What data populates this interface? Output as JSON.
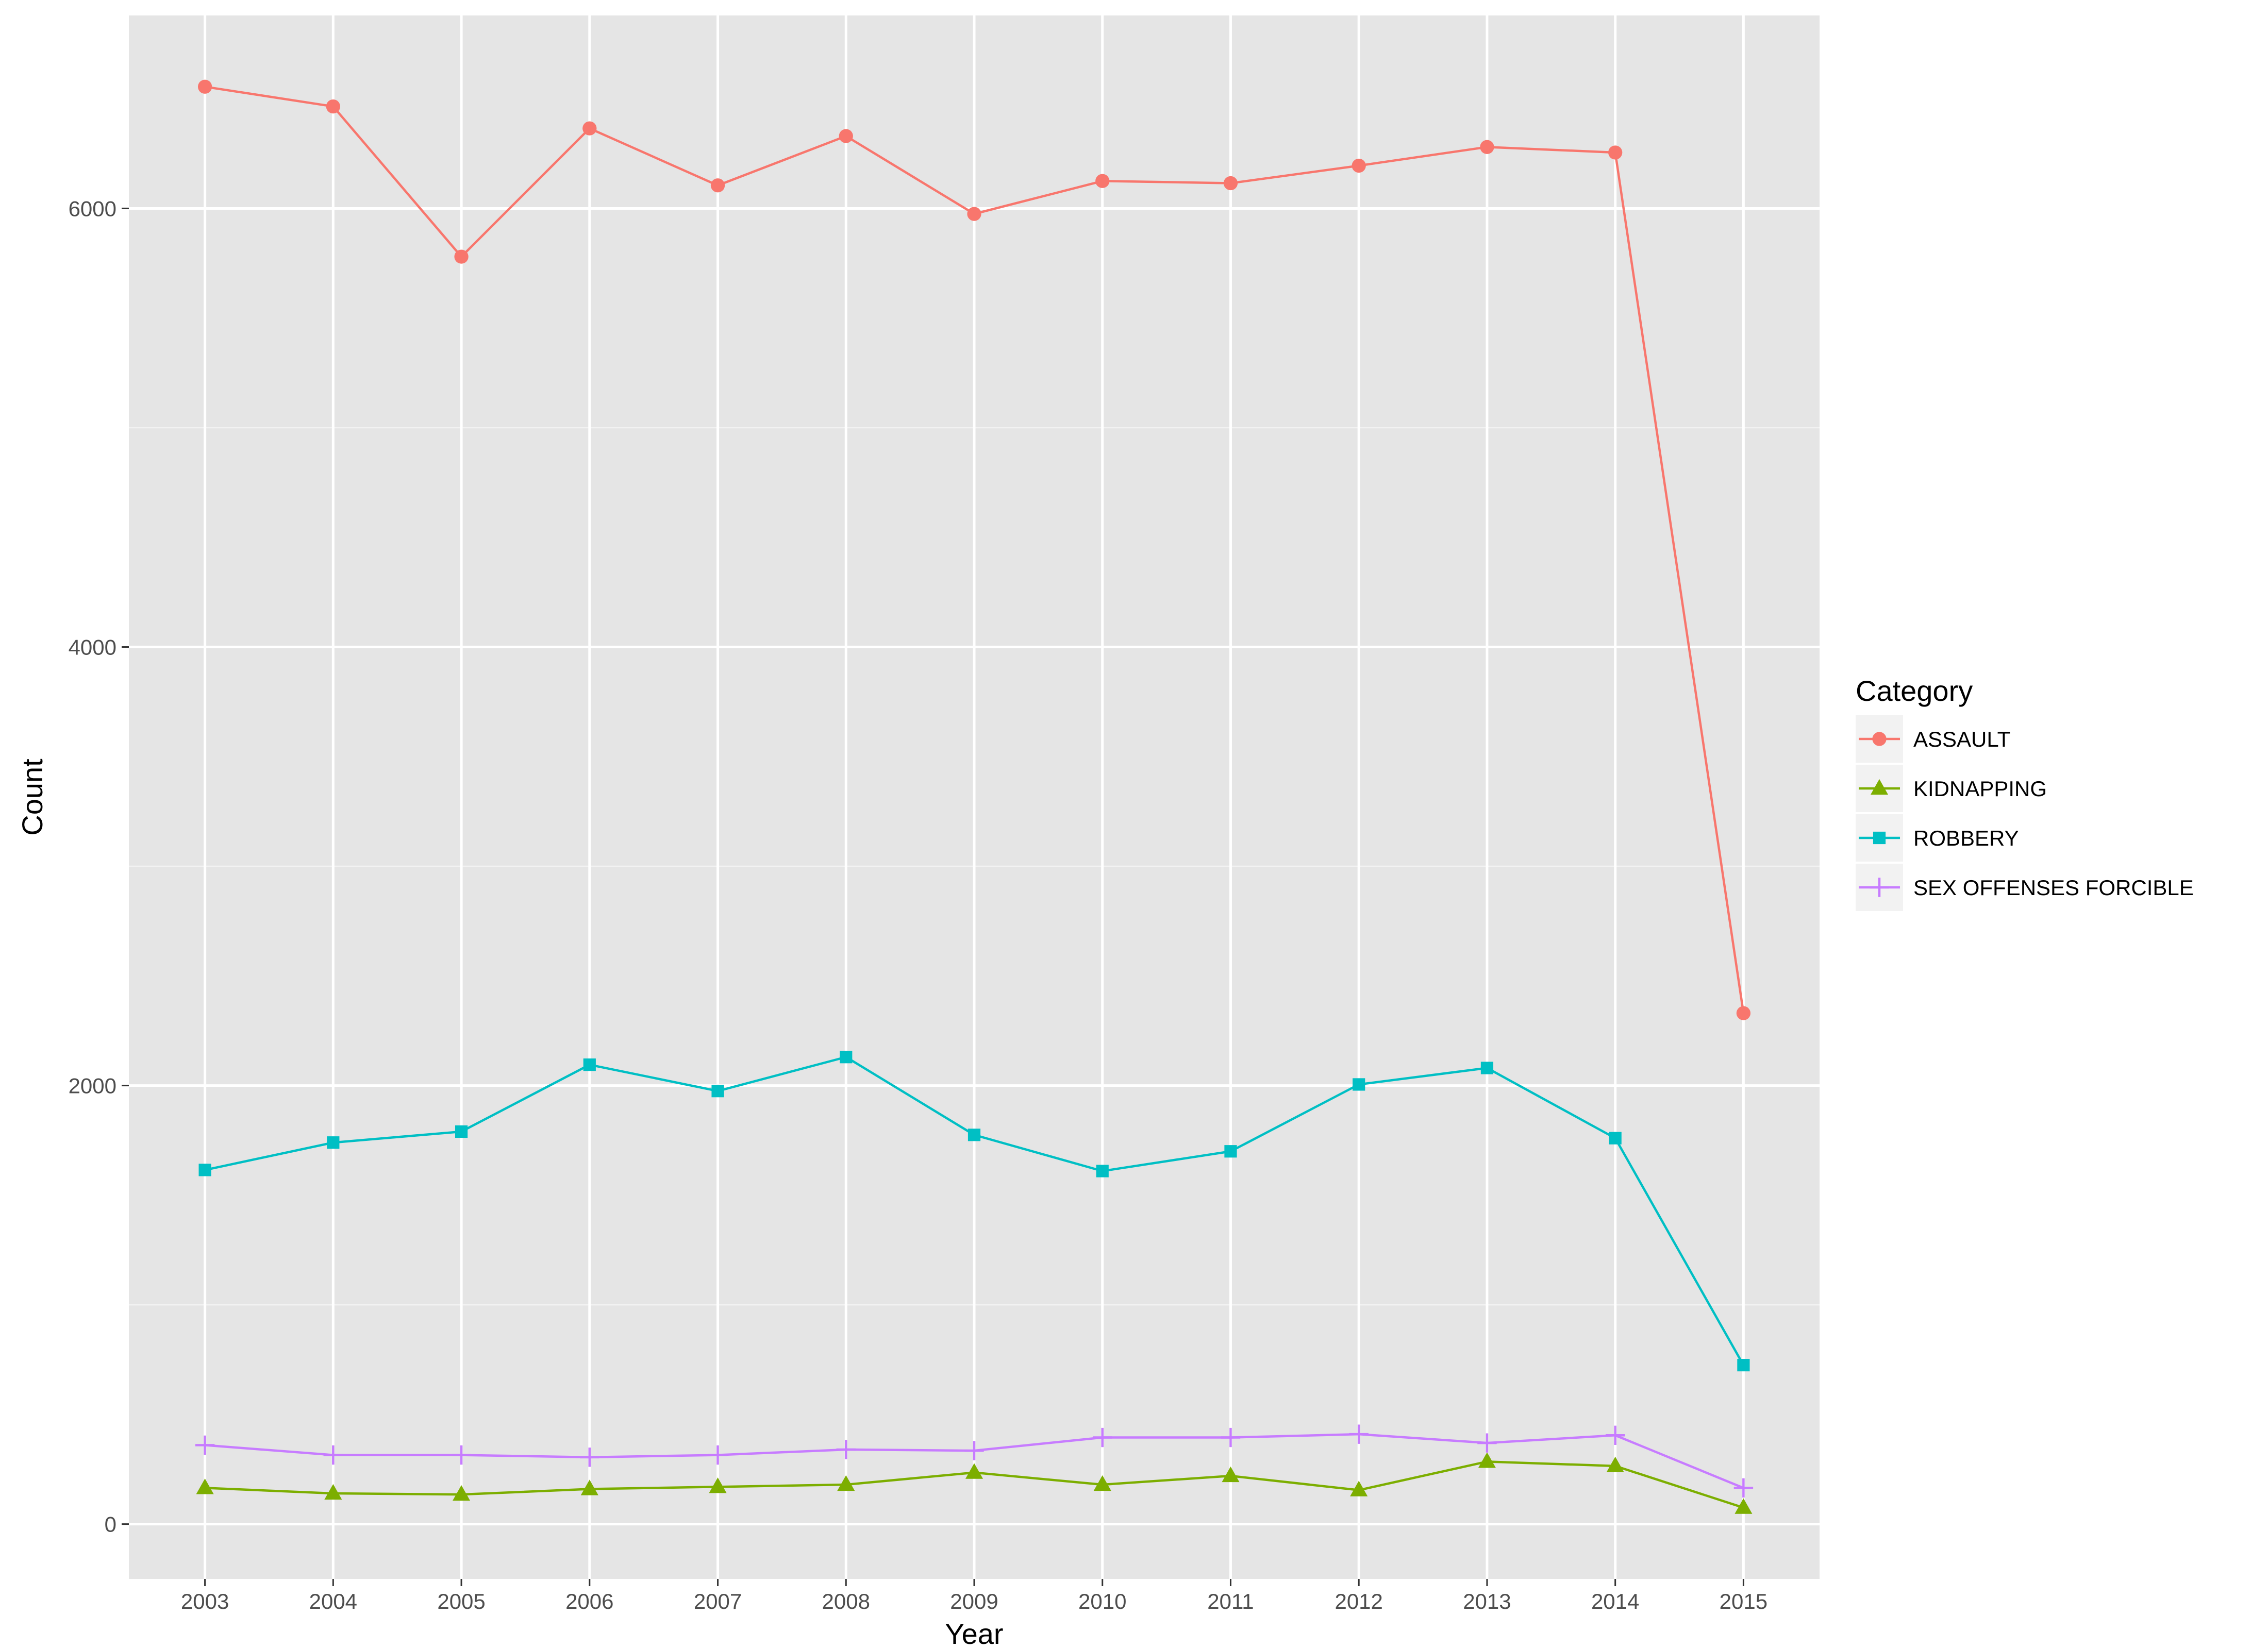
{
  "chart_data": {
    "type": "line",
    "xlabel": "Year",
    "ylabel": "Count",
    "x": [
      2003,
      2004,
      2005,
      2006,
      2007,
      2008,
      2009,
      2010,
      2011,
      2012,
      2013,
      2014,
      2015
    ],
    "x_tick_labels": [
      "2003",
      "2004",
      "2005",
      "2006",
      "2007",
      "2008",
      "2009",
      "2010",
      "2011",
      "2012",
      "2013",
      "2014",
      "2015"
    ],
    "y_ticks": [
      0,
      2000,
      4000,
      6000
    ],
    "y_tick_labels": [
      "0",
      "2000",
      "4000",
      "6000"
    ],
    "ylim": [
      -250,
      6880
    ],
    "grid": true,
    "legend": {
      "title": "Category",
      "position": "right"
    },
    "series": [
      {
        "name": "ASSAULT",
        "color": "#F8766D",
        "shape": "circle",
        "values": [
          6555,
          6465,
          5780,
          6365,
          6105,
          6330,
          5975,
          6125,
          6115,
          6195,
          6280,
          6255,
          2330
        ]
      },
      {
        "name": "KIDNAPPING",
        "color": "#7CAE00",
        "shape": "triangle",
        "values": [
          165,
          140,
          135,
          160,
          170,
          180,
          235,
          180,
          220,
          155,
          285,
          265,
          75
        ]
      },
      {
        "name": "ROBBERY",
        "color": "#00BFC4",
        "shape": "square",
        "values": [
          1615,
          1740,
          1790,
          2095,
          1975,
          2130,
          1775,
          1610,
          1700,
          2005,
          2080,
          1760,
          725
        ]
      },
      {
        "name": "SEX OFFENSES FORCIBLE",
        "color": "#C77CFF",
        "shape": "plus",
        "values": [
          360,
          315,
          315,
          305,
          315,
          340,
          335,
          395,
          395,
          410,
          370,
          405,
          165
        ]
      }
    ]
  }
}
